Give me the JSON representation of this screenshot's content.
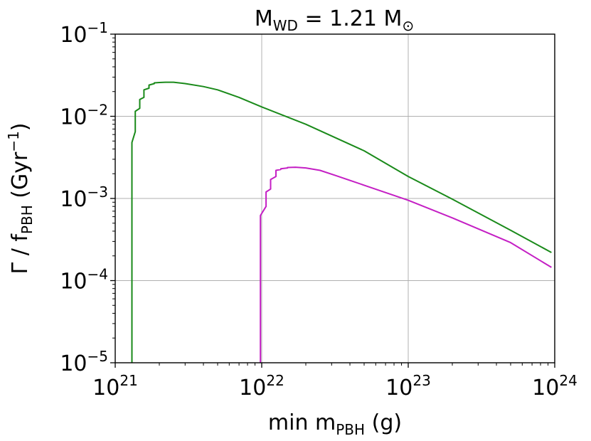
{
  "chart_data": {
    "type": "line",
    "title": {
      "prefix": "M",
      "sub": "WD",
      "middle": " = 1.21 M",
      "sub2": "⊙"
    },
    "xlabel": {
      "prefix": "min m",
      "sub": "PBH",
      "suffix": " (g)"
    },
    "ylabel": {
      "prefix": "Γ / f",
      "sub": "PBH",
      "middle": " (Gyr",
      "sup": "−1",
      "suffix": ")"
    },
    "x_scale": "log",
    "y_scale": "log",
    "xlim": [
      1e+21,
      1e+24
    ],
    "ylim": [
      1e-05,
      0.1
    ],
    "x_ticks": [
      {
        "base": "10",
        "exp": "21",
        "value": 1e+21
      },
      {
        "base": "10",
        "exp": "22",
        "value": 1e+22
      },
      {
        "base": "10",
        "exp": "23",
        "value": 1e+23
      },
      {
        "base": "10",
        "exp": "24",
        "value": 1e+24
      }
    ],
    "y_ticks": [
      {
        "base": "10",
        "exp": "−5",
        "value": 1e-05
      },
      {
        "base": "10",
        "exp": "−4",
        "value": 0.0001
      },
      {
        "base": "10",
        "exp": "−3",
        "value": 0.001
      },
      {
        "base": "10",
        "exp": "−2",
        "value": 0.01
      },
      {
        "base": "10",
        "exp": "−1",
        "value": 0.1
      }
    ],
    "grid": true,
    "series": [
      {
        "color": "#1a8a1a",
        "x": [
          1.3e+21,
          1.3e+21,
          1.3e+21,
          1.37e+21,
          1.37e+21,
          1.47e+21,
          1.47e+21,
          1.57e+21,
          1.57e+21,
          1.7e+21,
          1.7e+21,
          1.85e+21,
          1.85e+21,
          2e+21,
          2.2e+21,
          2.5e+21,
          3e+21,
          4e+21,
          5e+21,
          7e+21,
          1e+22,
          2e+22,
          5e+22,
          1e+23,
          2e+23,
          5e+23,
          9.5e+23
        ],
        "y": [
          1e-05,
          0.002,
          0.0048,
          0.0065,
          0.0115,
          0.0125,
          0.016,
          0.017,
          0.021,
          0.022,
          0.024,
          0.025,
          0.0255,
          0.0258,
          0.026,
          0.026,
          0.025,
          0.023,
          0.021,
          0.017,
          0.013,
          0.008,
          0.0038,
          0.00185,
          0.00098,
          0.00041,
          0.00022
        ]
      },
      {
        "color": "#c41fc4",
        "x": [
          9.8e+21,
          9.8e+21,
          9.8e+21,
          1.07e+22,
          1.07e+22,
          1.15e+22,
          1.15e+22,
          1.25e+22,
          1.25e+22,
          1.35e+22,
          1.35e+22,
          1.5e+22,
          1.5e+22,
          1.7e+22,
          2e+22,
          2.5e+22,
          3.2e+22,
          5e+22,
          1e+23,
          2e+23,
          5e+23,
          9.5e+23
        ],
        "y": [
          1e-05,
          0.0002,
          0.00062,
          0.0008,
          0.0012,
          0.0013,
          0.0017,
          0.00185,
          0.0022,
          0.00225,
          0.0023,
          0.00235,
          0.00238,
          0.0024,
          0.00235,
          0.0022,
          0.0019,
          0.00145,
          0.00095,
          0.00058,
          0.00029,
          0.000145
        ]
      }
    ]
  }
}
